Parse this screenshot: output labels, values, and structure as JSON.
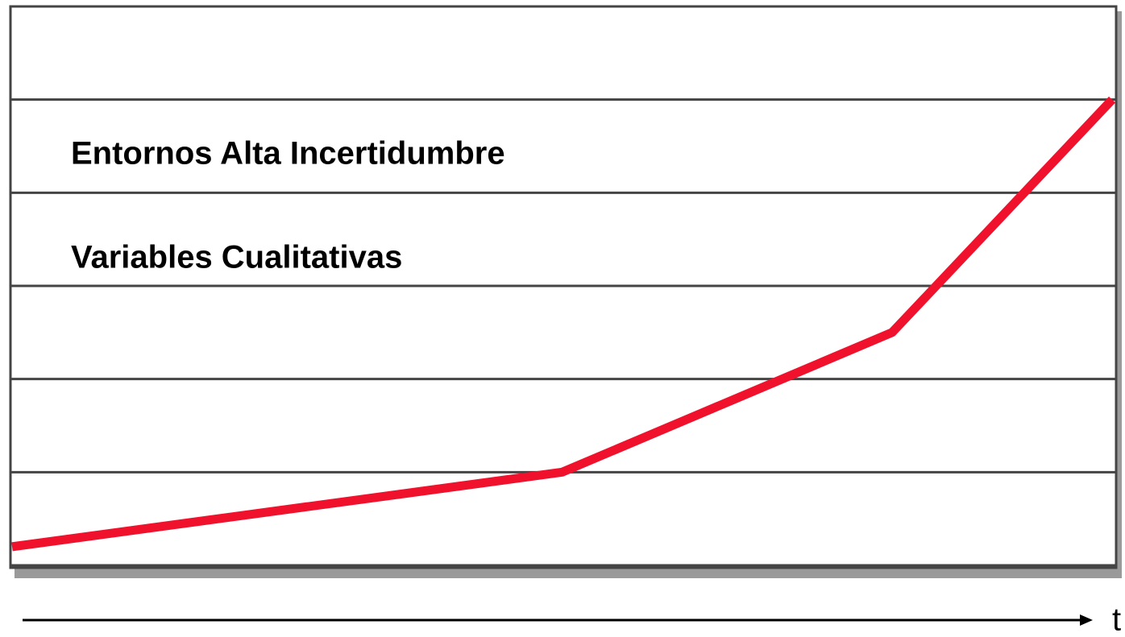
{
  "chart_data": {
    "type": "line",
    "annotations": [
      "Entornos Alta Incertidumbre",
      "Variables Cualitativas"
    ],
    "xlabel": "t",
    "x": [
      0,
      50,
      80,
      100
    ],
    "series": [
      {
        "color": "#f0122d",
        "values": [
          0.2,
          1.0,
          2.5,
          5.0
        ]
      }
    ],
    "xlim": [
      0,
      100
    ],
    "ylim": [
      0,
      6
    ],
    "yticks": [
      0,
      1,
      2,
      3,
      4,
      5,
      6
    ],
    "grid": true
  }
}
